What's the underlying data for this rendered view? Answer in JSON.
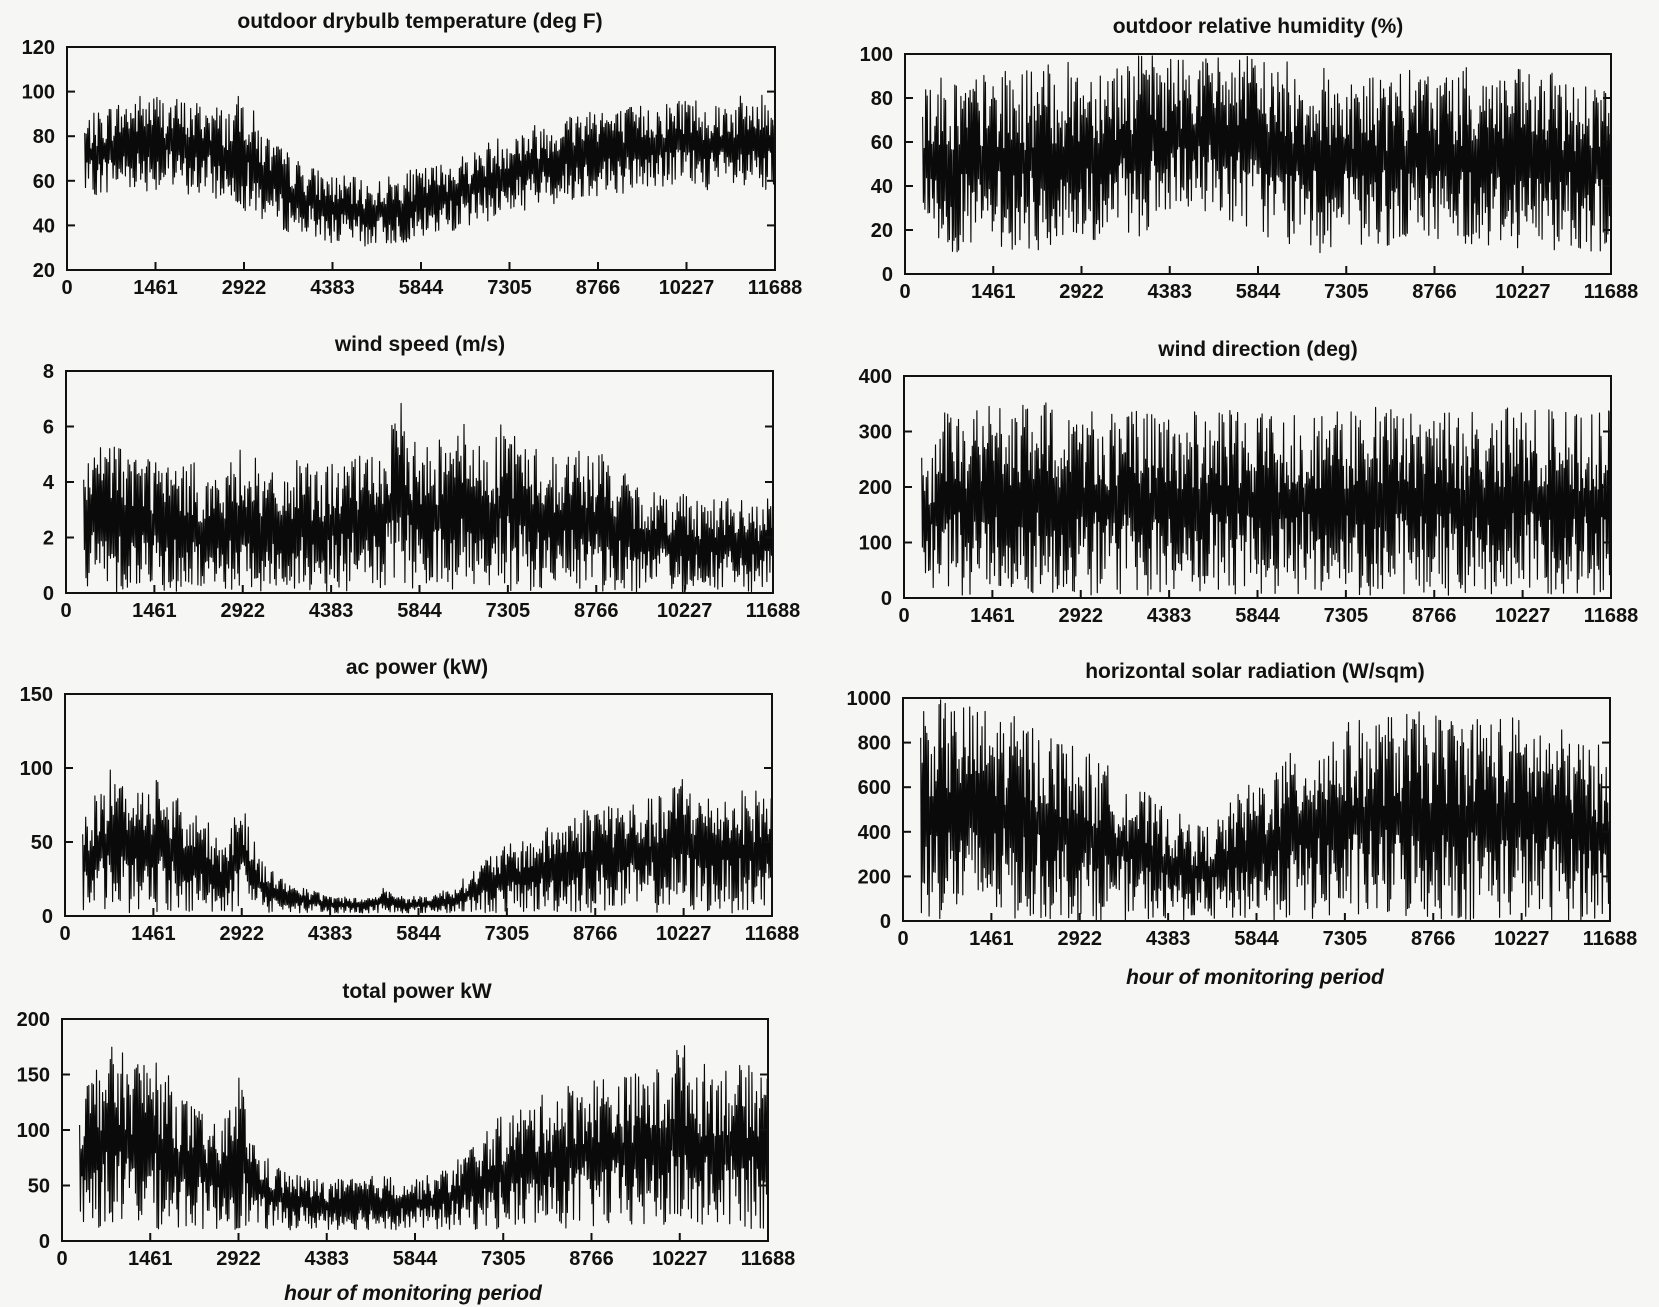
{
  "figure": {
    "colors": {
      "ink": "#111111",
      "background": "#f6f6f4"
    }
  },
  "chart_data": [
    {
      "type": "line",
      "title": "outdoor drybulb temperature (deg F)",
      "xlabel": "",
      "ylabel": "",
      "xlim": [
        0,
        11688
      ],
      "ylim": [
        20,
        120
      ],
      "xticks": [
        0,
        1461,
        2922,
        4383,
        5844,
        7305,
        8766,
        10227,
        11688
      ],
      "yticks": [
        20,
        40,
        60,
        80,
        100,
        120
      ],
      "grid": false,
      "series": [
        {
          "x": [
            292,
            730,
            1168,
            1461,
            1753,
            2045,
            2338,
            2630,
            2922,
            3214,
            3507,
            3799,
            4091,
            4383,
            4675,
            4968,
            5260,
            5552,
            5844,
            6136,
            6429,
            6721,
            7013,
            7305,
            7597,
            7890,
            8182,
            8474,
            8766,
            9058,
            9351,
            9643,
            9935,
            10227,
            10519,
            10812,
            11104,
            11396,
            11688
          ],
          "min": [
            52,
            55,
            56,
            55,
            54,
            53,
            52,
            50,
            47,
            42,
            38,
            36,
            34,
            32,
            31,
            30,
            31,
            32,
            33,
            36,
            38,
            40,
            42,
            45,
            47,
            48,
            50,
            52,
            53,
            54,
            55,
            56,
            57,
            57,
            56,
            55,
            54,
            53,
            52
          ],
          "max": [
            88,
            95,
            99,
            100,
            98,
            96,
            97,
            92,
            101,
            84,
            76,
            70,
            66,
            63,
            62,
            60,
            62,
            64,
            66,
            68,
            71,
            74,
            79,
            82,
            85,
            87,
            90,
            93,
            97,
            92,
            94,
            95,
            96,
            100,
            96,
            97,
            98,
            99,
            100
          ]
        }
      ]
    },
    {
      "type": "line",
      "title": "outdoor relative humidity (%)",
      "xlabel": "",
      "ylabel": "",
      "xlim": [
        0,
        11688
      ],
      "ylim": [
        0,
        100
      ],
      "xticks": [
        0,
        1461,
        2922,
        4383,
        5844,
        7305,
        8766,
        10227,
        11688
      ],
      "yticks": [
        0,
        20,
        40,
        60,
        80,
        100
      ],
      "grid": false,
      "series": [
        {
          "x": [
            292,
            730,
            1168,
            1461,
            1753,
            2045,
            2338,
            2630,
            2922,
            3214,
            3507,
            3799,
            4091,
            4383,
            4675,
            4968,
            5260,
            5552,
            5844,
            6136,
            6429,
            6721,
            7013,
            7305,
            7597,
            7890,
            8182,
            8474,
            8766,
            9058,
            9351,
            9643,
            9935,
            10227,
            10519,
            10812,
            11104,
            11396,
            11688
          ],
          "min": [
            12,
            10,
            9,
            10,
            11,
            10,
            9,
            10,
            11,
            12,
            14,
            16,
            20,
            22,
            25,
            28,
            26,
            22,
            18,
            14,
            12,
            10,
            9,
            10,
            11,
            12,
            13,
            14,
            15,
            14,
            13,
            12,
            12,
            11,
            10,
            11,
            12,
            10,
            9
          ],
          "max": [
            92,
            90,
            91,
            92,
            93,
            94,
            95,
            96,
            97,
            98,
            99,
            100,
            100,
            100,
            100,
            100,
            100,
            100,
            99,
            98,
            96,
            95,
            94,
            93,
            92,
            91,
            92,
            93,
            94,
            93,
            94,
            95,
            94,
            93,
            92,
            91,
            90,
            89,
            88
          ]
        }
      ]
    },
    {
      "type": "line",
      "title": "wind speed (m/s)",
      "xlabel": "",
      "ylabel": "",
      "xlim": [
        0,
        11688
      ],
      "ylim": [
        0,
        8
      ],
      "xticks": [
        0,
        1461,
        2922,
        4383,
        5844,
        7305,
        8766,
        10227,
        11688
      ],
      "yticks": [
        0,
        2,
        4,
        6,
        8
      ],
      "grid": false,
      "series": [
        {
          "x": [
            292,
            730,
            1168,
            1461,
            1753,
            2045,
            2338,
            2630,
            2922,
            3214,
            3507,
            3799,
            4091,
            4383,
            4675,
            4968,
            5260,
            5552,
            5844,
            6136,
            6429,
            6721,
            7013,
            7305,
            7597,
            7890,
            8182,
            8474,
            8766,
            9058,
            9351,
            9643,
            9935,
            10227,
            10519,
            10812,
            11104,
            11396,
            11688
          ],
          "min": [
            0,
            0,
            0,
            0,
            0,
            0,
            0,
            0,
            0,
            0,
            0,
            0,
            0,
            0,
            0,
            0,
            0,
            0,
            0,
            0,
            0,
            0,
            0,
            0,
            0,
            0,
            0,
            0,
            0,
            0,
            0,
            0,
            0,
            0,
            0,
            0,
            0,
            0,
            0
          ],
          "max": [
            4.6,
            5.8,
            5.2,
            5.1,
            4.6,
            4.8,
            4.4,
            4.3,
            5.6,
            4.6,
            4.2,
            4.8,
            4.6,
            4.7,
            4.9,
            5.0,
            5.4,
            6.9,
            5.2,
            5.6,
            7.1,
            5.4,
            5.6,
            6.4,
            5.4,
            5.2,
            5.0,
            5.3,
            5.2,
            4.8,
            4.0,
            3.8,
            3.6,
            3.8,
            3.4,
            3.6,
            3.4,
            3.2,
            3.6
          ]
        }
      ]
    },
    {
      "type": "line",
      "title": "wind direction (deg)",
      "xlabel": "",
      "ylabel": "",
      "xlim": [
        0,
        11688
      ],
      "ylim": [
        0,
        400
      ],
      "xticks": [
        0,
        1461,
        2922,
        4383,
        5844,
        7305,
        8766,
        10227,
        11688
      ],
      "yticks": [
        0,
        100,
        200,
        300,
        400
      ],
      "grid": false,
      "series": [
        {
          "x": [
            292,
            730,
            1168,
            1461,
            1753,
            2045,
            2338,
            2630,
            2922,
            3214,
            3507,
            3799,
            4091,
            4383,
            4675,
            4968,
            5260,
            5552,
            5844,
            6136,
            6429,
            6721,
            7013,
            7305,
            7597,
            7890,
            8182,
            8474,
            8766,
            9058,
            9351,
            9643,
            9935,
            10227,
            10519,
            10812,
            11104,
            11396,
            11688
          ],
          "min": [
            5,
            5,
            5,
            5,
            5,
            5,
            5,
            5,
            5,
            5,
            5,
            5,
            5,
            5,
            5,
            5,
            5,
            5,
            5,
            5,
            5,
            5,
            5,
            5,
            5,
            5,
            5,
            5,
            5,
            5,
            5,
            5,
            5,
            5,
            5,
            5,
            5,
            5,
            5
          ],
          "max": [
            260,
            345,
            350,
            352,
            350,
            348,
            352,
            350,
            345,
            348,
            340,
            338,
            335,
            332,
            335,
            338,
            340,
            342,
            338,
            340,
            342,
            340,
            338,
            340,
            342,
            345,
            340,
            342,
            344,
            342,
            340,
            342,
            344,
            342,
            340,
            342,
            338,
            336,
            340
          ]
        }
      ]
    },
    {
      "type": "line",
      "title": "ac power (kW)",
      "xlabel": "",
      "ylabel": "",
      "xlim": [
        0,
        11688
      ],
      "ylim": [
        0,
        150
      ],
      "xticks": [
        0,
        1461,
        2922,
        4383,
        5844,
        7305,
        8766,
        10227,
        11688
      ],
      "yticks": [
        0,
        50,
        100,
        150
      ],
      "grid": false,
      "series": [
        {
          "x": [
            292,
            730,
            1168,
            1461,
            1753,
            2045,
            2338,
            2630,
            2922,
            3214,
            3507,
            3799,
            4091,
            4383,
            4675,
            4968,
            5260,
            5552,
            5844,
            6136,
            6429,
            6721,
            7013,
            7305,
            7597,
            7890,
            8182,
            8474,
            8766,
            9058,
            9351,
            9643,
            9935,
            10227,
            10519,
            10812,
            11104,
            11396,
            11688
          ],
          "min": [
            2,
            2,
            2,
            2,
            2,
            2,
            2,
            2,
            2,
            2,
            2,
            2,
            2,
            2,
            2,
            2,
            2,
            2,
            2,
            2,
            2,
            2,
            2,
            2,
            2,
            2,
            2,
            2,
            2,
            2,
            2,
            2,
            2,
            2,
            2,
            2,
            2,
            2,
            2
          ],
          "max": [
            65,
            100,
            90,
            98,
            88,
            72,
            65,
            48,
            85,
            40,
            28,
            22,
            17,
            14,
            13,
            12,
            20,
            14,
            13,
            16,
            20,
            30,
            42,
            48,
            52,
            58,
            65,
            72,
            78,
            80,
            78,
            80,
            82,
            100,
            82,
            84,
            85,
            86,
            88
          ]
        }
      ]
    },
    {
      "type": "line",
      "title": "horizontal solar radiation (W/sqm)",
      "xlabel": "hour of monitoring period",
      "ylabel": "",
      "xlim": [
        0,
        11688
      ],
      "ylim": [
        0,
        1000
      ],
      "xticks": [
        0,
        1461,
        2922,
        4383,
        5844,
        7305,
        8766,
        10227,
        11688
      ],
      "yticks": [
        0,
        200,
        400,
        600,
        800,
        1000
      ],
      "grid": false,
      "series": [
        {
          "x": [
            292,
            730,
            1168,
            1461,
            1753,
            2045,
            2338,
            2630,
            2922,
            3214,
            3507,
            3799,
            4091,
            4383,
            4675,
            4968,
            5260,
            5552,
            5844,
            6136,
            6429,
            6721,
            7013,
            7305,
            7597,
            7890,
            8182,
            8474,
            8766,
            9058,
            9351,
            9643,
            9935,
            10227,
            10519,
            10812,
            11104,
            11396,
            11688
          ],
          "min": [
            0,
            0,
            0,
            0,
            0,
            0,
            0,
            0,
            0,
            0,
            0,
            0,
            0,
            0,
            0,
            0,
            0,
            0,
            0,
            0,
            0,
            0,
            0,
            0,
            0,
            0,
            0,
            0,
            0,
            0,
            0,
            0,
            0,
            0,
            0,
            0,
            0,
            0,
            0
          ],
          "max": [
            1000,
            990,
            975,
            955,
            930,
            900,
            865,
            830,
            780,
            730,
            680,
            620,
            560,
            500,
            470,
            420,
            480,
            580,
            640,
            700,
            760,
            810,
            860,
            890,
            910,
            925,
            935,
            940,
            935,
            930,
            935,
            940,
            930,
            915,
            895,
            870,
            840,
            800,
            780
          ]
        }
      ]
    },
    {
      "type": "line",
      "title": "total power kW",
      "xlabel": "hour of monitoring period",
      "ylabel": "",
      "xlim": [
        0,
        11688
      ],
      "ylim": [
        0,
        200
      ],
      "xticks": [
        0,
        1461,
        2922,
        4383,
        5844,
        7305,
        8766,
        10227,
        11688
      ],
      "yticks": [
        0,
        50,
        100,
        150,
        200
      ],
      "grid": false,
      "series": [
        {
          "x": [
            292,
            730,
            1168,
            1461,
            1753,
            2045,
            2338,
            2630,
            2922,
            3214,
            3507,
            3799,
            4091,
            4383,
            4675,
            4968,
            5260,
            5552,
            5844,
            6136,
            6429,
            6721,
            7013,
            7305,
            7597,
            7890,
            8182,
            8474,
            8766,
            9058,
            9351,
            9643,
            9935,
            10227,
            10519,
            10812,
            11104,
            11396,
            11688
          ],
          "min": [
            10,
            10,
            10,
            10,
            10,
            10,
            10,
            10,
            10,
            10,
            10,
            10,
            10,
            10,
            10,
            10,
            10,
            10,
            10,
            10,
            10,
            10,
            10,
            10,
            10,
            10,
            10,
            10,
            10,
            10,
            10,
            10,
            10,
            10,
            10,
            10,
            10,
            10,
            10
          ],
          "max": [
            135,
            178,
            165,
            172,
            150,
            130,
            115,
            100,
            155,
            85,
            70,
            62,
            58,
            55,
            56,
            57,
            60,
            58,
            57,
            60,
            68,
            85,
            100,
            115,
            122,
            130,
            138,
            145,
            150,
            152,
            150,
            155,
            158,
            185,
            160,
            162,
            160,
            158,
            162
          ]
        }
      ]
    }
  ]
}
